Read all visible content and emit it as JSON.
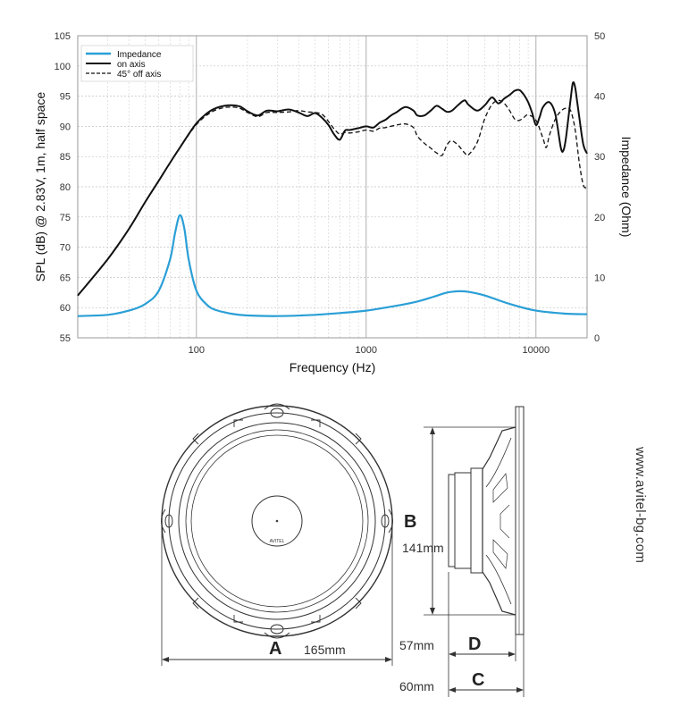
{
  "chart_data": {
    "type": "line",
    "title": "",
    "xlabel": "Frequency (Hz)",
    "ylabel": "SPL (dB) @ 2.83V, 1m, half space",
    "y2label": "Impedance (Ohm)",
    "xscale": "log",
    "xlim": [
      20,
      20000
    ],
    "ylim": [
      55,
      105
    ],
    "y2lim": [
      0,
      50
    ],
    "xticks": [
      "100",
      "1000",
      "10000"
    ],
    "yticks": [
      "105",
      "100",
      "95",
      "90",
      "85",
      "80",
      "75",
      "70",
      "65",
      "60",
      "55"
    ],
    "y2ticks": [
      "50",
      "40",
      "30",
      "20",
      "10",
      "0"
    ],
    "grid": true,
    "legend_position": "top-left",
    "series": [
      {
        "name": "Impedance",
        "axis": "right",
        "color": "#2a9fd6",
        "style": "solid",
        "points": [
          [
            20,
            3.6
          ],
          [
            30,
            3.8
          ],
          [
            40,
            4.5
          ],
          [
            50,
            5.6
          ],
          [
            60,
            7.8
          ],
          [
            70,
            13
          ],
          [
            75,
            17.5
          ],
          [
            80,
            20.3
          ],
          [
            85,
            18
          ],
          [
            90,
            13
          ],
          [
            100,
            7.8
          ],
          [
            115,
            5.5
          ],
          [
            130,
            4.6
          ],
          [
            160,
            4.0
          ],
          [
            200,
            3.7
          ],
          [
            300,
            3.6
          ],
          [
            500,
            3.8
          ],
          [
            700,
            4.1
          ],
          [
            1000,
            4.5
          ],
          [
            1500,
            5.3
          ],
          [
            2000,
            6.0
          ],
          [
            2500,
            6.8
          ],
          [
            3000,
            7.5
          ],
          [
            3500,
            7.7
          ],
          [
            4000,
            7.6
          ],
          [
            5000,
            7.0
          ],
          [
            7000,
            5.6
          ],
          [
            10000,
            4.5
          ],
          [
            15000,
            4.0
          ],
          [
            20000,
            3.9
          ]
        ]
      },
      {
        "name": "on axis",
        "axis": "left",
        "color": "#111111",
        "style": "solid",
        "points": [
          [
            20,
            62
          ],
          [
            30,
            68
          ],
          [
            40,
            73
          ],
          [
            50,
            77.5
          ],
          [
            60,
            81
          ],
          [
            70,
            84
          ],
          [
            80,
            86.5
          ],
          [
            100,
            90.5
          ],
          [
            120,
            92.5
          ],
          [
            140,
            93.3
          ],
          [
            160,
            93.5
          ],
          [
            180,
            93.3
          ],
          [
            200,
            92.5
          ],
          [
            230,
            91.8
          ],
          [
            260,
            92.6
          ],
          [
            300,
            92.5
          ],
          [
            350,
            92.8
          ],
          [
            400,
            92.3
          ],
          [
            450,
            91.7
          ],
          [
            500,
            92.2
          ],
          [
            550,
            91.4
          ],
          [
            600,
            90.2
          ],
          [
            650,
            88.6
          ],
          [
            700,
            87.8
          ],
          [
            750,
            89.3
          ],
          [
            800,
            89.4
          ],
          [
            900,
            89.7
          ],
          [
            1000,
            90.0
          ],
          [
            1100,
            89.8
          ],
          [
            1200,
            90.6
          ],
          [
            1300,
            91.1
          ],
          [
            1400,
            91.8
          ],
          [
            1500,
            92.3
          ],
          [
            1700,
            93.2
          ],
          [
            1900,
            92.6
          ],
          [
            2000,
            91.8
          ],
          [
            2200,
            91.8
          ],
          [
            2400,
            92.6
          ],
          [
            2600,
            93.4
          ],
          [
            2800,
            92.9
          ],
          [
            3000,
            92.4
          ],
          [
            3200,
            92.6
          ],
          [
            3500,
            93.6
          ],
          [
            3800,
            94.3
          ],
          [
            4000,
            93.6
          ],
          [
            4500,
            92.6
          ],
          [
            5000,
            93.5
          ],
          [
            5500,
            94.8
          ],
          [
            6000,
            93.8
          ],
          [
            6500,
            94.6
          ],
          [
            7000,
            95.2
          ],
          [
            7500,
            95.9
          ],
          [
            8000,
            96.0
          ],
          [
            8500,
            95.2
          ],
          [
            9000,
            94.0
          ],
          [
            9500,
            92.2
          ],
          [
            10000,
            90.2
          ],
          [
            10500,
            91.5
          ],
          [
            11000,
            93.2
          ],
          [
            12000,
            94.0
          ],
          [
            13000,
            92.0
          ],
          [
            14000,
            86.5
          ],
          [
            14500,
            86.0
          ],
          [
            15000,
            88.0
          ],
          [
            16000,
            94.5
          ],
          [
            16500,
            97.2
          ],
          [
            17000,
            96.5
          ],
          [
            17500,
            94.0
          ],
          [
            18000,
            91.5
          ],
          [
            19000,
            87.0
          ],
          [
            20000,
            85.5
          ]
        ]
      },
      {
        "name": "45° off axis",
        "axis": "left",
        "color": "#111111",
        "style": "dashed",
        "points": [
          [
            20,
            62
          ],
          [
            30,
            68
          ],
          [
            40,
            73
          ],
          [
            50,
            77.5
          ],
          [
            60,
            81
          ],
          [
            70,
            84
          ],
          [
            80,
            86.5
          ],
          [
            100,
            90.3
          ],
          [
            120,
            92.2
          ],
          [
            140,
            93.0
          ],
          [
            160,
            93.2
          ],
          [
            180,
            93.0
          ],
          [
            200,
            92.3
          ],
          [
            230,
            91.6
          ],
          [
            260,
            92.3
          ],
          [
            300,
            92.3
          ],
          [
            350,
            92.4
          ],
          [
            400,
            92.6
          ],
          [
            450,
            92.4
          ],
          [
            500,
            92.3
          ],
          [
            550,
            92.0
          ],
          [
            600,
            90.8
          ],
          [
            650,
            89.5
          ],
          [
            700,
            88.7
          ],
          [
            750,
            89.0
          ],
          [
            800,
            88.9
          ],
          [
            900,
            89.1
          ],
          [
            1000,
            89.4
          ],
          [
            1100,
            89.2
          ],
          [
            1200,
            89.7
          ],
          [
            1300,
            89.8
          ],
          [
            1500,
            90.2
          ],
          [
            1700,
            90.4
          ],
          [
            1900,
            89.8
          ],
          [
            2000,
            88.4
          ],
          [
            2200,
            87.2
          ],
          [
            2400,
            86.4
          ],
          [
            2600,
            85.6
          ],
          [
            2800,
            85.2
          ],
          [
            3000,
            87.0
          ],
          [
            3200,
            87.6
          ],
          [
            3500,
            86.8
          ],
          [
            3800,
            85.6
          ],
          [
            4000,
            85.3
          ],
          [
            4500,
            87.3
          ],
          [
            5000,
            91.3
          ],
          [
            5500,
            93.6
          ],
          [
            6000,
            94.3
          ],
          [
            6500,
            93.8
          ],
          [
            7000,
            92.6
          ],
          [
            7500,
            91.2
          ],
          [
            8000,
            91.0
          ],
          [
            8500,
            91.5
          ],
          [
            9000,
            91.9
          ],
          [
            10000,
            91.0
          ],
          [
            11000,
            88.0
          ],
          [
            11500,
            86.5
          ],
          [
            12000,
            88.5
          ],
          [
            13000,
            91.2
          ],
          [
            14000,
            92.5
          ],
          [
            15000,
            93.0
          ],
          [
            16000,
            92.6
          ],
          [
            17000,
            89.5
          ],
          [
            18000,
            84.0
          ],
          [
            19000,
            80.3
          ],
          [
            20000,
            79.8
          ]
        ]
      }
    ]
  },
  "drawing": {
    "brand_label": "AVITEL",
    "dim_a_letter": "A",
    "dim_a_value": "165mm",
    "dim_b_letter": "B",
    "dim_b_value": "141mm",
    "dim_c_letter": "C",
    "dim_c_value": "60mm",
    "dim_d_letter": "D",
    "dim_d_value": "57mm",
    "website": "www.avitel-bg.com"
  }
}
